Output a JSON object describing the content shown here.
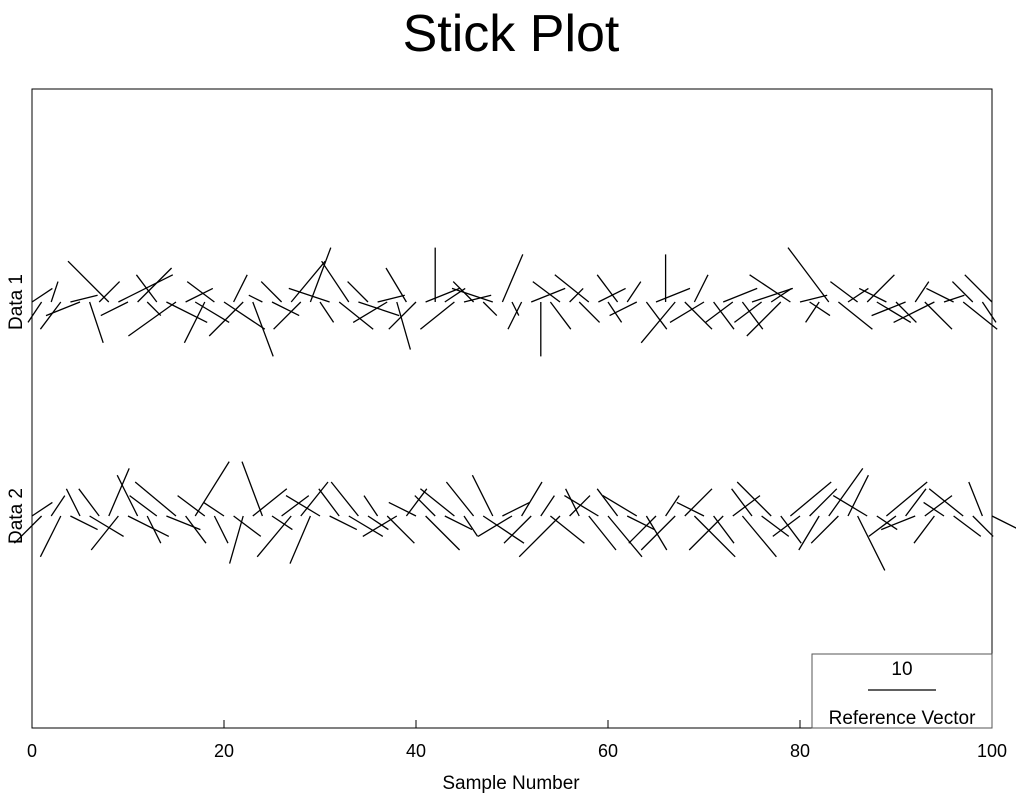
{
  "chart_data": {
    "type": "stick",
    "title": "Stick Plot",
    "xlabel": "Sample Number",
    "xlim": [
      0,
      100
    ],
    "xticks": [
      0,
      20,
      40,
      60,
      80,
      100
    ],
    "series": [
      {
        "name": "Data 1",
        "x": [
          0,
          1,
          2,
          3,
          4,
          5,
          6,
          7,
          8,
          9,
          10,
          11,
          12,
          13,
          14,
          15,
          16,
          17,
          18,
          19,
          20,
          21,
          22,
          23,
          24,
          25,
          26,
          27,
          28,
          29,
          30,
          31,
          32,
          33,
          34,
          35,
          36,
          37,
          38,
          39,
          40,
          41,
          42,
          43,
          44,
          45,
          46,
          47,
          48,
          49,
          50,
          51,
          52,
          53,
          54,
          55,
          56,
          57,
          58,
          59,
          60,
          61,
          62,
          63,
          64,
          65,
          66,
          67,
          68,
          69,
          70,
          71,
          72,
          73,
          74,
          75,
          76,
          77,
          78,
          79,
          80,
          81,
          82,
          83,
          84,
          85,
          86,
          87,
          88,
          89,
          90,
          91,
          92,
          93,
          94,
          95,
          96,
          97,
          98,
          99,
          100
        ],
        "u": [
          3,
          -2,
          1,
          -3,
          4,
          -5,
          2,
          3,
          -6,
          8,
          -4,
          5,
          2,
          -3,
          6,
          -7,
          4,
          5,
          -3,
          -4,
          6,
          2,
          -5,
          3,
          -2,
          4,
          -3,
          5,
          -4,
          3,
          2,
          -6,
          5,
          -4,
          6,
          -3,
          4,
          -5,
          2,
          -3,
          -4,
          5,
          0,
          3,
          -5,
          4,
          -3,
          2,
          -6,
          3,
          1,
          -2,
          5,
          0,
          3,
          -4,
          2,
          3,
          -5,
          4,
          2,
          -3,
          2,
          -4,
          3,
          5,
          0,
          -5,
          4,
          2,
          -5,
          3,
          5,
          -4,
          3,
          6,
          -4,
          3,
          -5,
          -6,
          4,
          3,
          -2,
          -6,
          5,
          3,
          -4,
          4,
          5,
          -4,
          3,
          -5,
          2,
          4,
          -6,
          3,
          -4,
          5,
          -3,
          2,
          -4
        ],
        "v": [
          2,
          -3,
          3,
          -4,
          1,
          -2,
          -6,
          3,
          6,
          4,
          -2,
          5,
          -2,
          4,
          -3,
          -5,
          2,
          -3,
          -6,
          3,
          -4,
          4,
          -5,
          -8,
          1,
          -2,
          3,
          6,
          -4,
          8,
          -3,
          2,
          -4,
          6,
          -2,
          3,
          1,
          -3,
          -7,
          5,
          -4,
          2,
          8,
          2,
          -4,
          1,
          3,
          -2,
          2,
          7,
          -2,
          -4,
          2,
          -8,
          -4,
          3,
          2,
          -3,
          4,
          2,
          -3,
          4,
          3,
          -2,
          -4,
          2,
          7,
          -6,
          -4,
          4,
          -3,
          -4,
          2,
          -3,
          -4,
          2,
          -3,
          2,
          -5,
          4,
          1,
          -2,
          -3,
          8,
          -4,
          2,
          3,
          4,
          -3,
          2,
          -3,
          -2,
          3,
          -4,
          -3,
          1,
          2,
          -4,
          3,
          -3,
          4
        ]
      },
      {
        "name": "Data 2",
        "x": [
          0,
          1,
          2,
          3,
          4,
          5,
          6,
          7,
          8,
          9,
          10,
          11,
          12,
          13,
          14,
          15,
          16,
          17,
          18,
          19,
          20,
          21,
          22,
          23,
          24,
          25,
          26,
          27,
          28,
          29,
          30,
          31,
          32,
          33,
          34,
          35,
          36,
          37,
          38,
          39,
          40,
          41,
          42,
          43,
          44,
          45,
          46,
          47,
          48,
          49,
          50,
          51,
          52,
          53,
          54,
          55,
          56,
          57,
          58,
          59,
          60,
          61,
          62,
          63,
          64,
          65,
          66,
          67,
          68,
          69,
          70,
          71,
          72,
          73,
          74,
          75,
          76,
          77,
          78,
          79,
          80,
          81,
          82,
          83,
          84,
          85,
          86,
          87,
          88,
          89,
          90,
          91,
          92,
          93,
          94,
          95,
          96,
          97,
          98,
          99,
          100
        ],
        "u": [
          3,
          -4,
          2,
          -3,
          4,
          -2,
          5,
          -3,
          3,
          -4,
          6,
          -3,
          2,
          -4,
          5,
          -6,
          3,
          5,
          -4,
          2,
          -3,
          4,
          -2,
          5,
          -3,
          3,
          4,
          -5,
          4,
          -3,
          -5,
          4,
          -3,
          5,
          -4,
          3,
          -2,
          4,
          -5,
          3,
          -4,
          5,
          -3,
          4,
          -5,
          2,
          -4,
          6,
          -3,
          4,
          -5,
          3,
          -4,
          2,
          5,
          -6,
          3,
          -2,
          4,
          -5,
          5,
          -3,
          4,
          -5,
          3,
          -4,
          2,
          -5,
          4,
          6,
          -4,
          3,
          -5,
          4,
          5,
          -3,
          4,
          -5,
          3,
          6,
          -4,
          4,
          -3,
          5,
          -4,
          3,
          4,
          -5,
          3,
          6,
          -4,
          3,
          -5,
          4,
          -3,
          -3,
          4,
          -5,
          3,
          -2,
          4
        ],
        "v": [
          2,
          -4,
          3,
          -6,
          -2,
          4,
          -3,
          4,
          7,
          -5,
          -3,
          6,
          -4,
          3,
          -2,
          5,
          -4,
          8,
          3,
          -4,
          2,
          -3,
          -7,
          4,
          8,
          -2,
          3,
          -6,
          5,
          -7,
          3,
          -2,
          4,
          -3,
          5,
          -2,
          3,
          -4,
          -3,
          4,
          2,
          -5,
          3,
          -2,
          4,
          -3,
          5,
          -4,
          6,
          2,
          -3,
          5,
          -4,
          3,
          -4,
          -6,
          3,
          4,
          -5,
          3,
          -6,
          4,
          -2,
          3,
          -5,
          -4,
          3,
          -5,
          4,
          -6,
          2,
          -4,
          -5,
          3,
          -6,
          4,
          -3,
          5,
          -4,
          5,
          -3,
          4,
          -5,
          7,
          -4,
          6,
          -8,
          3,
          -2,
          5,
          -3,
          4,
          -2,
          3,
          -4,
          2,
          -3,
          4,
          -3,
          5,
          -2
        ]
      }
    ],
    "reference_vector": {
      "label": "10",
      "caption": "Reference Vector",
      "length": 10
    }
  }
}
